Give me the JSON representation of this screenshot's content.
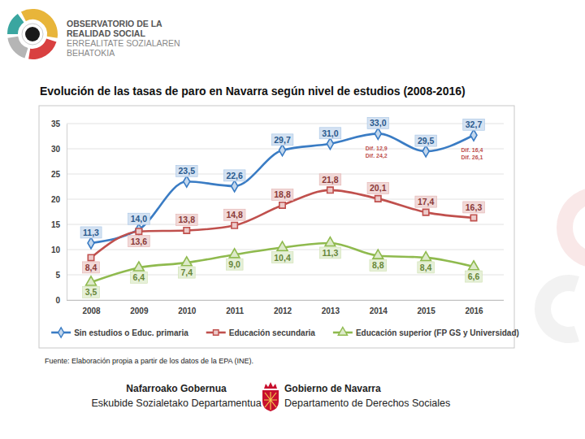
{
  "chart_data": {
    "type": "line",
    "title": "Evolución de las tasas de paro en Navarra según nivel de estudios (2008-2016)",
    "categories": [
      "2008",
      "2009",
      "2010",
      "2011",
      "2012",
      "2013",
      "2014",
      "2015",
      "2016"
    ],
    "series": [
      {
        "name": "Sin estudios o Educ. primaria",
        "color": "#3a7cc4",
        "marker": "diamond",
        "line_style": "solid",
        "values": [
          11.3,
          14.0,
          23.5,
          22.6,
          29.7,
          31.0,
          33.0,
          29.5,
          32.7
        ],
        "value_labels": [
          "11,3",
          "14,0",
          "23,5",
          "22,6",
          "29,7",
          "31,0",
          "33,0",
          "29,5",
          "32,7"
        ]
      },
      {
        "name": "Educación secundaria",
        "color": "#c0504d",
        "marker": "square",
        "line_style": "solid",
        "values": [
          8.4,
          13.6,
          13.8,
          14.8,
          18.8,
          21.8,
          20.1,
          17.4,
          16.3
        ],
        "value_labels": [
          "8,4",
          "13,6",
          "13,8",
          "14,8",
          "18,8",
          "21,8",
          "20,1",
          "17,4",
          "16,3"
        ]
      },
      {
        "name": "Educación superior (FP GS y Universidad)",
        "color": "#8fba4e",
        "marker": "triangle",
        "line_style": "solid",
        "values": [
          3.5,
          6.4,
          7.4,
          9.0,
          10.4,
          11.3,
          8.8,
          8.4,
          6.6
        ],
        "value_labels": [
          "3,5",
          "6,4",
          "7,4",
          "9,0",
          "10,4",
          "11,3",
          "8,8",
          "8,4",
          "6,6"
        ]
      }
    ],
    "ylim": [
      0,
      35
    ],
    "yticks": [
      0,
      5,
      10,
      15,
      20,
      25,
      30,
      35
    ],
    "grid": true,
    "legend": "bottom",
    "data_labels": true,
    "annotations": [
      {
        "category": "2014",
        "lines": [
          "Dif. 12,9",
          "Dif. 24,2"
        ]
      },
      {
        "category": "2016",
        "lines": [
          "Dif. 16,4",
          "Dif. 26,1"
        ]
      }
    ]
  },
  "page": {
    "header": {
      "lines": [
        "OBSERVATORIO DE LA",
        "REALIDAD SOCIAL",
        "ERREALITATE SOZIALAREN",
        "BEHATOKIA"
      ]
    },
    "source": "Fuente: Elaboración propia a partir de los datos de la EPA (INE).",
    "footer": {
      "left": [
        "Nafarroako Gobernua",
        "Eskubide Sozialetako Departamentua"
      ],
      "right": [
        "Gobierno de Navarra",
        "Departamento de Derechos Sociales"
      ]
    }
  }
}
